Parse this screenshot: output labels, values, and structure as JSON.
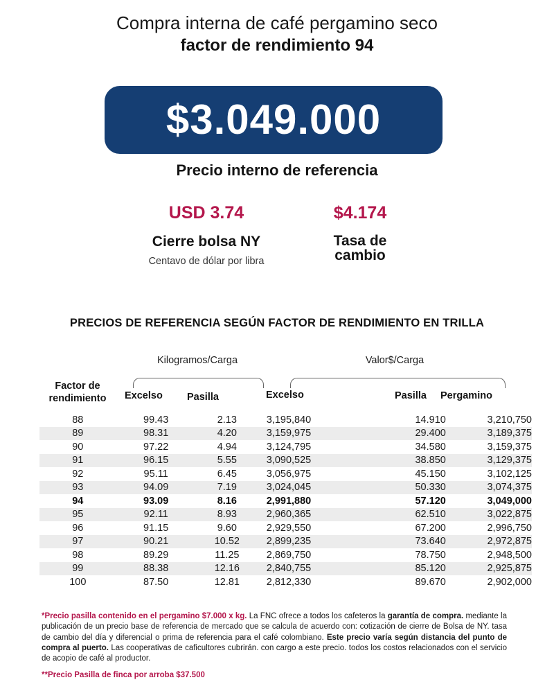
{
  "header": {
    "title_line1": "Compra interna de café pergamino seco",
    "title_line2": "factor de rendimiento 94"
  },
  "price": {
    "value": "$3.049.000",
    "label": "Precio interno de referencia"
  },
  "ny_close": {
    "value": "USD 3.74",
    "label": "Cierre bolsa NY",
    "sublabel": "Centavo de dólar por libra"
  },
  "exchange_rate": {
    "value": "$4.174",
    "label_line1": "Tasa de",
    "label_line2": "cambio"
  },
  "table": {
    "title": "PRECIOS DE REFERENCIA SEGÚN FACTOR DE RENDIMIENTO EN TRILLA",
    "group_kg": "Kilogramos/Carga",
    "group_value": "Valor$/Carga",
    "headers": {
      "factor_line1": "Factor de",
      "factor_line2": "rendimiento",
      "excelso_kg": "Excelso",
      "pasilla_kg": "Pasilla",
      "excelso_val": "Excelso",
      "pasilla_val": "Pasilla",
      "pergamino": "Pergamino"
    },
    "highlight_factor": "94",
    "rows": [
      [
        "88",
        "99.43",
        "2.13",
        "3,195,840",
        "14.910",
        "3,210,750"
      ],
      [
        "89",
        "98.31",
        "4.20",
        "3,159,975",
        "29.400",
        "3,189,375"
      ],
      [
        "90",
        "97.22",
        "4.94",
        "3,124,795",
        "34.580",
        "3,159,375"
      ],
      [
        "91",
        "96.15",
        "5.55",
        "3,090,525",
        "38.850",
        "3,129,375"
      ],
      [
        "92",
        "95.11",
        "6.45",
        "3,056,975",
        "45.150",
        "3,102,125"
      ],
      [
        "93",
        "94.09",
        "7.19",
        "3,024,045",
        "50.330",
        "3,074,375"
      ],
      [
        "94",
        "93.09",
        "8.16",
        "2,991,880",
        "57.120",
        "3,049,000"
      ],
      [
        "95",
        "92.11",
        "8.93",
        "2,960,365",
        "62.510",
        "3,022,875"
      ],
      [
        "96",
        "91.15",
        "9.60",
        "2,929,550",
        "67.200",
        "2,996,750"
      ],
      [
        "97",
        "90.21",
        "10.52",
        "2,899,235",
        "73.640",
        "2,972,875"
      ],
      [
        "98",
        "89.29",
        "11.25",
        "2,869,750",
        "78.750",
        "2,948,500"
      ],
      [
        "99",
        "88.38",
        "12.16",
        "2,840,755",
        "85.120",
        "2,925,875"
      ],
      [
        "100",
        "87.50",
        "12.81",
        "2,812,330",
        "89.670",
        "2,902,000"
      ]
    ]
  },
  "notes": {
    "n1_red": "*Precio pasilla contenido en el pergamino $7.000 x kg.",
    "n1_a": " La FNC ofrece a todos los cafeteros la ",
    "n1_bold1": "garantía de compra.",
    "n1_b": " mediante la publicación de un precio base de referencia de mercado que se calcula de acuerdo con: cotización de cierre de Bolsa de NY. tasa de cambio del día y diferencial o prima de referencia para el café colombiano. ",
    "n1_bold2": "Este precio varía según distancia del punto de compra al puerto.",
    "n1_c": " Las cooperativas de caficultores cubrirán. con cargo a este precio. todos los costos relacionados con el servicio de acopio de café al productor.",
    "n2": "**Precio Pasilla de finca por arroba $37.500"
  },
  "colors": {
    "brand_blue": "#153e73",
    "accent_red": "#b4174c",
    "row_shade": "#ececec"
  }
}
